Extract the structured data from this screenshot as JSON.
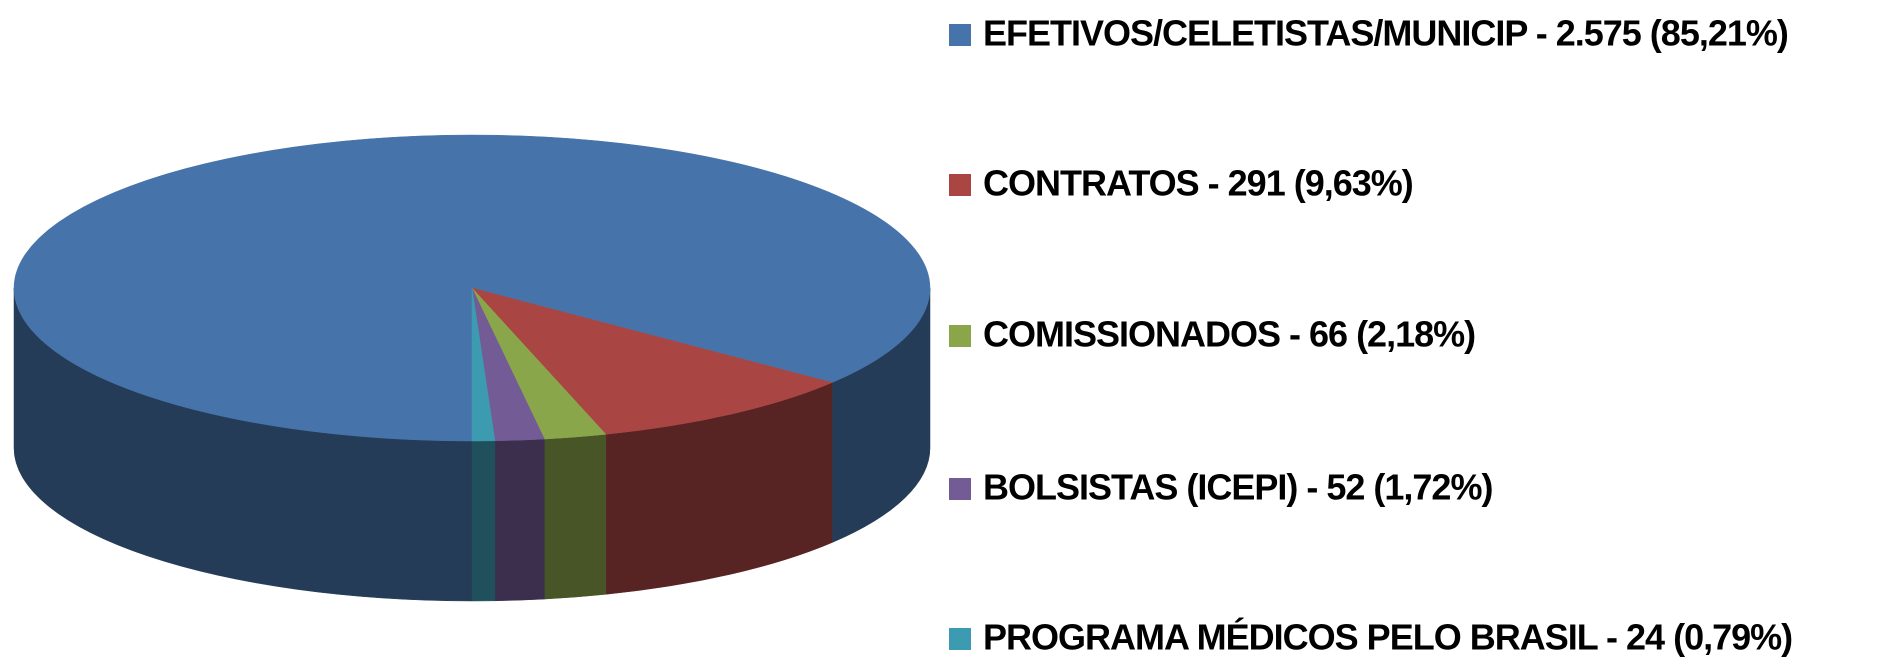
{
  "chart_data": {
    "type": "pie3d",
    "categories": [
      "EFETIVOS/CELETISTAS/MUNICIP - 2.575 (85,21%)",
      "CONTRATOS - 291 (9,63%)",
      "COMISSIONADOS - 66 (2,18%)",
      "BOLSISTAS (ICEPI) - 52 (1,72%)",
      "PROGRAMA MÉDICOS PELO BRASIL - 24 (0,79%)"
    ],
    "values": [
      2575,
      291,
      66,
      52,
      24
    ],
    "colors": [
      "#4674aa",
      "#a94644",
      "#8aa64b",
      "#735b95",
      "#3c9ab1"
    ],
    "legend": "right"
  }
}
